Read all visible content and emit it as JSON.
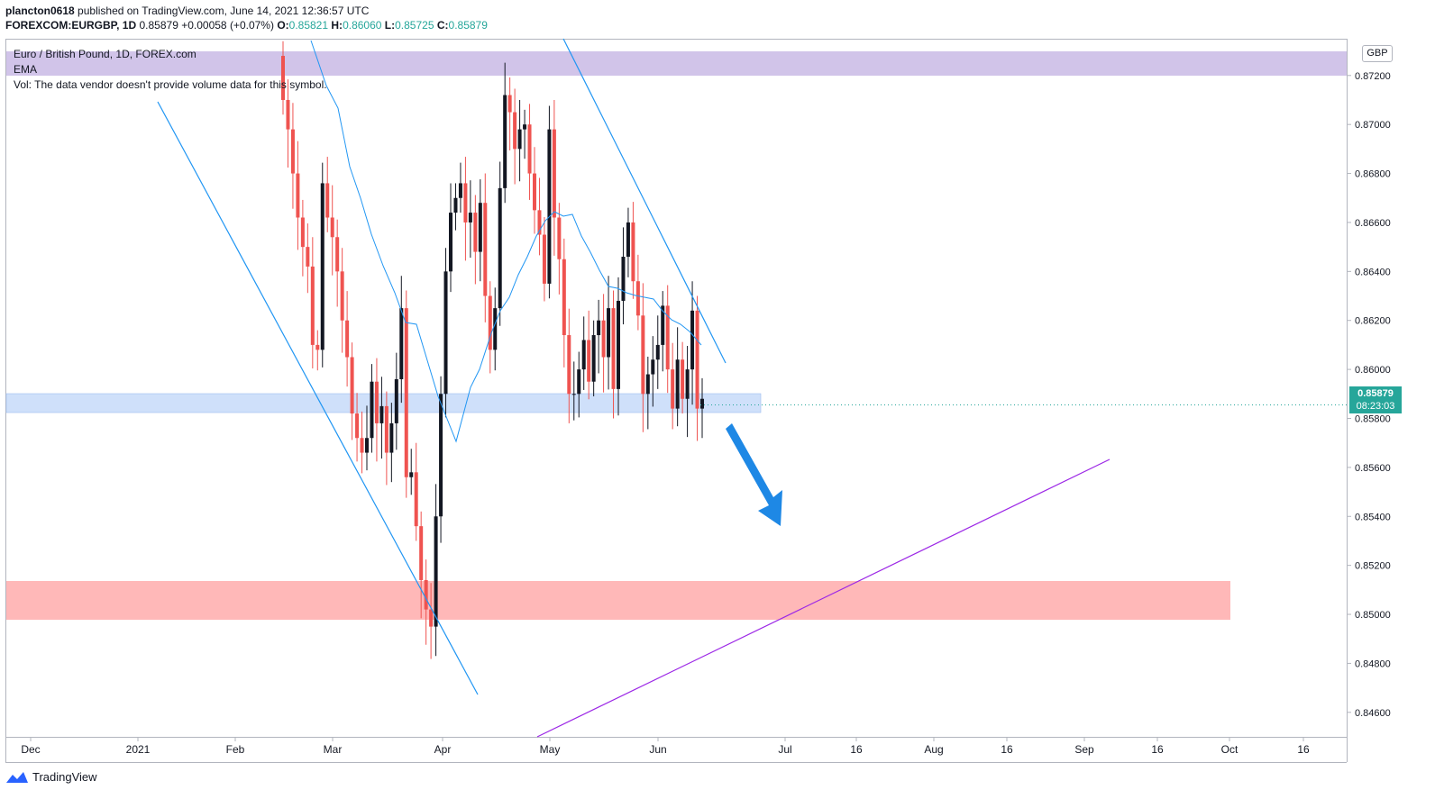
{
  "header": {
    "publisher": "plancton0618",
    "published_text": "published on TradingView.com, June 14, 2021 12:36:57 UTC",
    "symbol": "FOREXCOM:EURGBP, 1D",
    "last": "0.85879",
    "change": "+0.00058 (+0.07%)",
    "open_label": "O:",
    "open": "0.85821",
    "high_label": "H:",
    "high": "0.86060",
    "low_label": "L:",
    "low": "0.85725",
    "close_label": "C:",
    "close": "0.85879"
  },
  "legend": {
    "title": "Euro / British Pound, 1D, FOREX.com",
    "ema": "EMA",
    "vol": "Vol: The data vendor doesn't provide volume data for this symbol."
  },
  "price_axis": {
    "currency": "GBP",
    "current_price": "0.85879",
    "countdown": "08:23:03"
  },
  "footer": {
    "brand": "TradingView"
  },
  "colors": {
    "up": "#131722",
    "down": "#ef5350",
    "trend": "#2196f3",
    "ema": "#2196f3",
    "accent": "#26a69a",
    "purple_zone": "#d1c4e9",
    "blue_zone": "#bbdefb",
    "red_zone": "#ffb3b3",
    "purple_line": "#9c27e6",
    "arrow": "#1e88e5"
  },
  "chart_data": {
    "type": "candlestick",
    "symbol": "EURGBP",
    "interval": "1D",
    "ylim": [
      0.845,
      0.8735
    ],
    "y_ticks": [
      "0.84600",
      "0.84800",
      "0.85000",
      "0.85200",
      "0.85400",
      "0.85600",
      "0.85800",
      "0.86000",
      "0.86200",
      "0.86400",
      "0.86600",
      "0.86800",
      "0.87000",
      "0.87200"
    ],
    "x_ticks": [
      {
        "label": "Dec",
        "date": "2020-12-01"
      },
      {
        "label": "2021",
        "date": "2021-01-01"
      },
      {
        "label": "Feb",
        "date": "2021-02-01"
      },
      {
        "label": "Mar",
        "date": "2021-03-01"
      },
      {
        "label": "Apr",
        "date": "2021-04-01"
      },
      {
        "label": "May",
        "date": "2021-05-01"
      },
      {
        "label": "Jun",
        "date": "2021-06-01"
      },
      {
        "label": "Jul",
        "date": "2021-07-01"
      },
      {
        "label": "16",
        "date": "2021-07-16"
      },
      {
        "label": "Aug",
        "date": "2021-08-01"
      },
      {
        "label": "16",
        "date": "2021-08-16"
      },
      {
        "label": "Sep",
        "date": "2021-09-01"
      },
      {
        "label": "16",
        "date": "2021-09-16"
      },
      {
        "label": "Oct",
        "date": "2021-10-01"
      },
      {
        "label": "16",
        "date": "2021-10-16"
      }
    ],
    "candles_close": [
      0.871,
      0.8698,
      0.868,
      0.8662,
      0.865,
      0.8642,
      0.861,
      0.8608,
      0.8676,
      0.8662,
      0.8654,
      0.864,
      0.862,
      0.8605,
      0.8582,
      0.8572,
      0.8566,
      0.8572,
      0.8595,
      0.8578,
      0.8585,
      0.8566,
      0.8578,
      0.8596,
      0.8625,
      0.8556,
      0.8558,
      0.8536,
      0.8514,
      0.8502,
      0.8495,
      0.854,
      0.859,
      0.864,
      0.8664,
      0.867,
      0.8676,
      0.866,
      0.8664,
      0.8648,
      0.8668,
      0.863,
      0.8608,
      0.8625,
      0.8674,
      0.8712,
      0.8705,
      0.869,
      0.8698,
      0.87,
      0.868,
      0.8665,
      0.8655,
      0.8635,
      0.8698,
      0.8662,
      0.8645,
      0.8614,
      0.859,
      0.859,
      0.86,
      0.8612,
      0.8595,
      0.8614,
      0.862,
      0.8605,
      0.8625,
      0.8592,
      0.8628,
      0.8646,
      0.866,
      0.8636,
      0.8622,
      0.859,
      0.8598,
      0.8604,
      0.861,
      0.8626,
      0.86,
      0.8584,
      0.8604,
      0.8588,
      0.86,
      0.8624,
      0.8584,
      0.8588
    ],
    "current_price": 0.85879,
    "drawings": {
      "zones": [
        {
          "color": "purple",
          "from": 0.872,
          "to": 0.873
        },
        {
          "color": "blue",
          "from": 0.858,
          "to": 0.8588
        },
        {
          "color": "red",
          "from": 0.8492,
          "to": 0.8509
        }
      ],
      "trendlines": [
        "descending channel line 1",
        "descending channel line 2",
        "ascending purple line"
      ],
      "arrow": "downward blue arrow"
    }
  }
}
